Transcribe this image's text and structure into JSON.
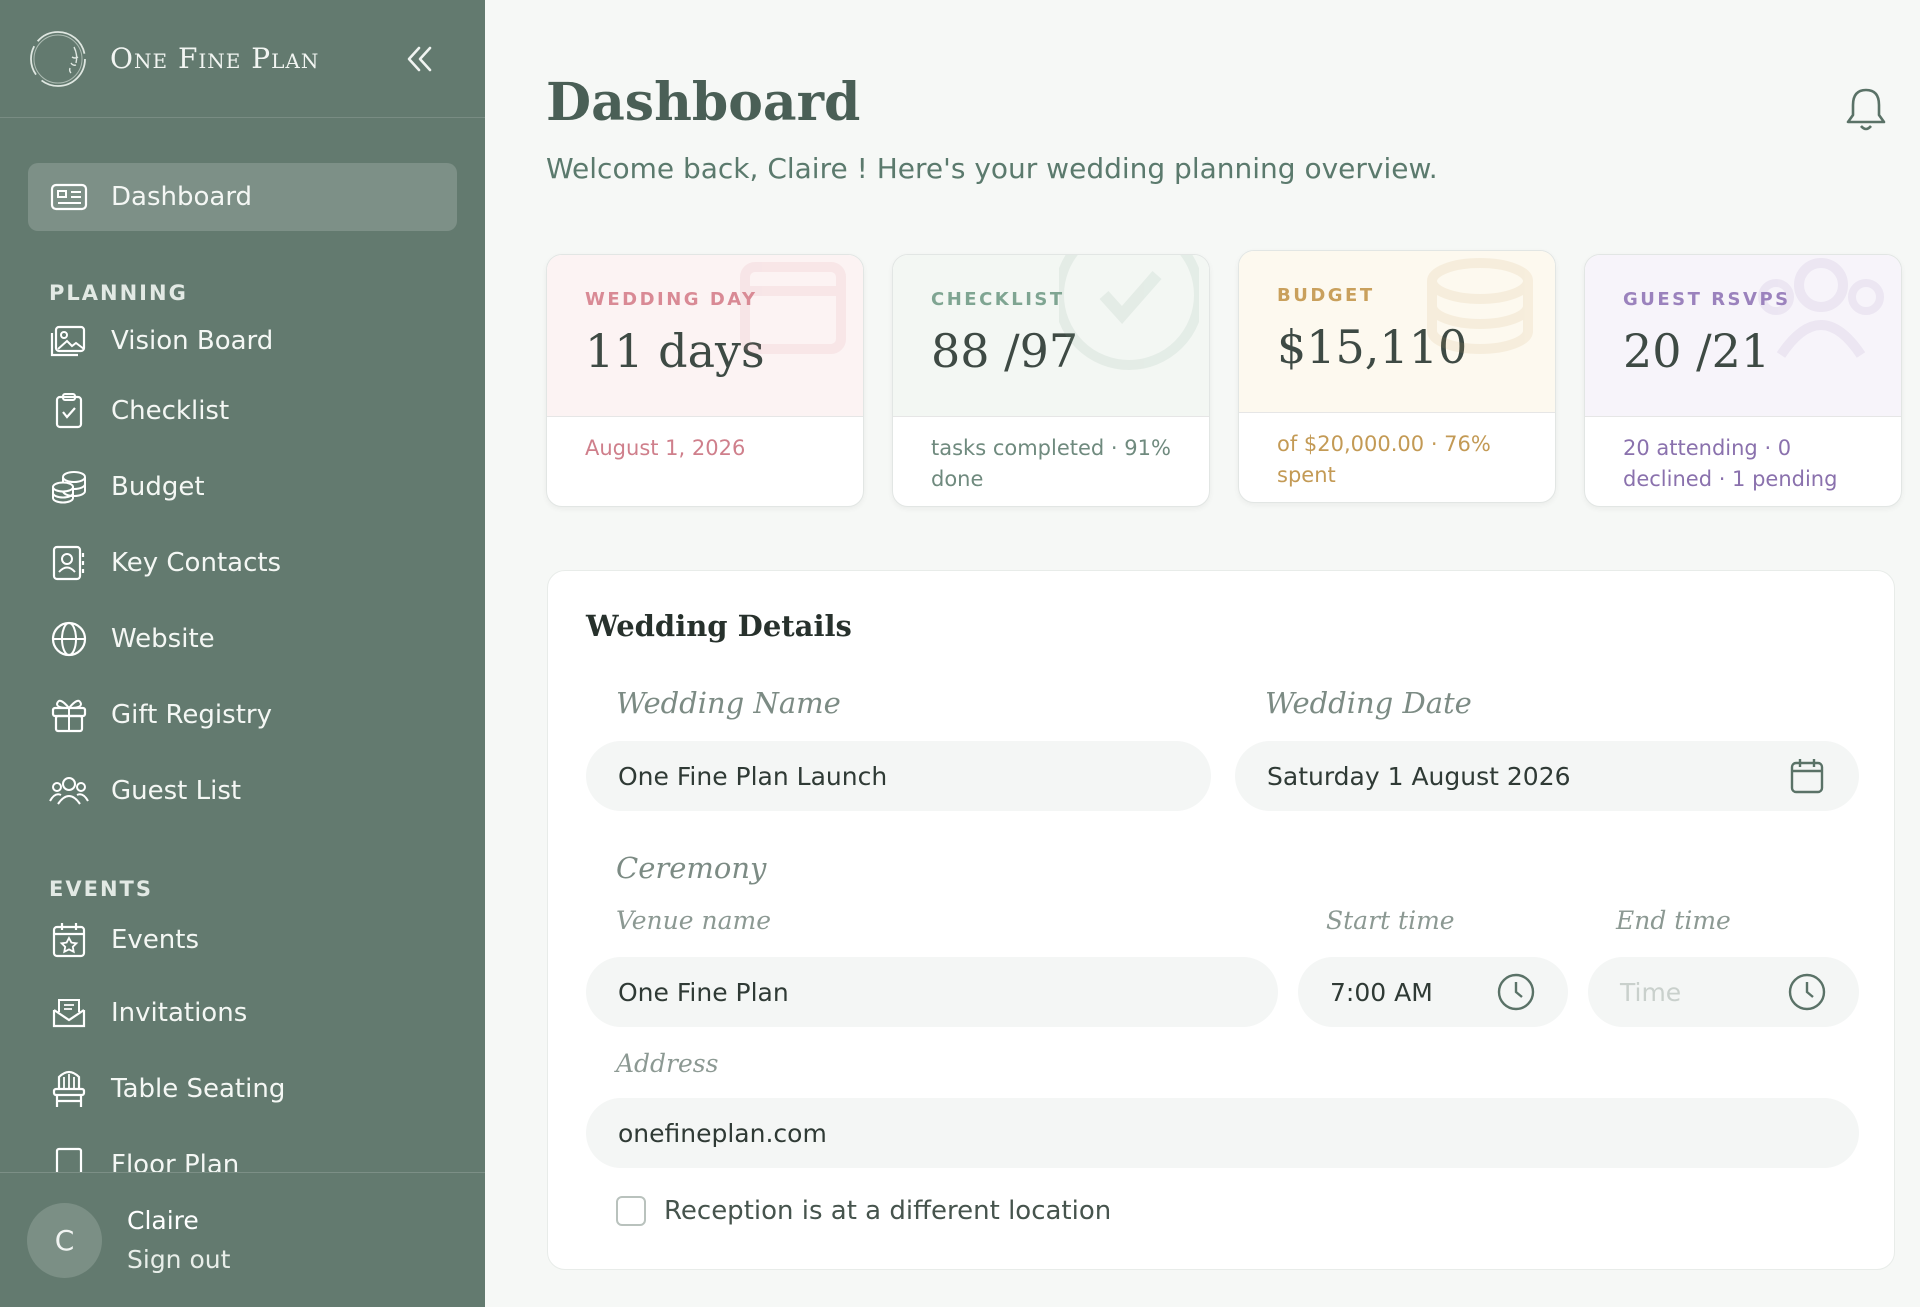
{
  "brand": {
    "name": "One Fine Plan"
  },
  "sidebar": {
    "active": {
      "label": "Dashboard",
      "icon": "dashboard-icon"
    },
    "sections": [
      {
        "header": "PLANNING",
        "items": [
          {
            "label": "Vision Board",
            "icon": "image-icon"
          },
          {
            "label": "Checklist",
            "icon": "clipboard-check-icon"
          },
          {
            "label": "Budget",
            "icon": "coins-icon"
          },
          {
            "label": "Key Contacts",
            "icon": "contact-book-icon"
          },
          {
            "label": "Website",
            "icon": "globe-icon"
          },
          {
            "label": "Gift Registry",
            "icon": "gift-icon"
          },
          {
            "label": "Guest List",
            "icon": "users-icon"
          }
        ]
      },
      {
        "header": "EVENTS",
        "items": [
          {
            "label": "Events",
            "icon": "calendar-star-icon"
          },
          {
            "label": "Invitations",
            "icon": "envelope-open-icon"
          },
          {
            "label": "Table Seating",
            "icon": "chair-icon"
          },
          {
            "label": "Floor Plan",
            "icon": "floor-plan-icon"
          }
        ]
      }
    ],
    "user": {
      "initial": "C",
      "name": "Claire",
      "signout": "Sign out"
    }
  },
  "header": {
    "title": "Dashboard",
    "subtitle": "Welcome back, Claire ! Here's your wedding planning overview."
  },
  "stats": [
    {
      "label": "WEDDING DAY",
      "value": "11 days",
      "sub": "August 1, 2026",
      "accent": "#d98a95",
      "topbg": "#fcf3f3",
      "subcolor": "#cf7f8b",
      "icon": "calendar-icon"
    },
    {
      "label": "CHECKLIST",
      "value": "88 /97",
      "sub": "tasks completed · 91% done",
      "accent": "#7fa592",
      "topbg": "#f3f7f3",
      "subcolor": "#6f8a7e",
      "icon": "check-circle-icon"
    },
    {
      "label": "BUDGET",
      "value": "$15,110",
      "sub": "of $20,000.00 · 76% spent",
      "accent": "#c9a05c",
      "topbg": "#fdf9ef",
      "subcolor": "#c39a55",
      "icon": "coins-icon"
    },
    {
      "label": "GUEST RSVPS",
      "value": "20 /21",
      "sub": "20 attending · 0 declined · 1 pending",
      "accent": "#9b82bd",
      "topbg": "#f7f4fa",
      "subcolor": "#8a71ad",
      "icon": "users-icon"
    }
  ],
  "details": {
    "title": "Wedding Details",
    "wedding_name_label": "Wedding Name",
    "wedding_name_value": "One Fine Plan Launch",
    "wedding_date_label": "Wedding Date",
    "wedding_date_value": "Saturday 1 August 2026",
    "ceremony_label": "Ceremony",
    "venue_label": "Venue name",
    "venue_value": "One Fine Plan",
    "start_label": "Start time",
    "start_value": "7:00 AM",
    "end_label": "End time",
    "end_placeholder": "Time",
    "address_label": "Address",
    "address_value": "onefineplan.com",
    "reception_checkbox": "Reception is at a different location"
  }
}
